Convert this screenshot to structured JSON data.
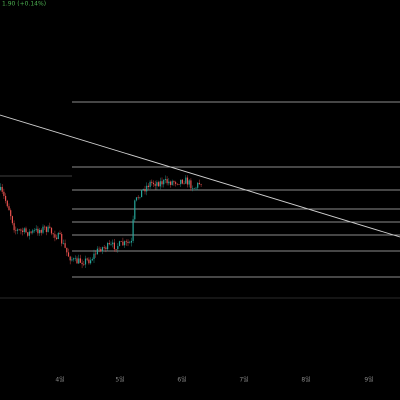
{
  "header": {
    "quote": "1.90 (+0.14%)"
  },
  "x_axis": {
    "labels": [
      "4일",
      "5일",
      "6일",
      "7일",
      "8일",
      "9일"
    ]
  }
}
